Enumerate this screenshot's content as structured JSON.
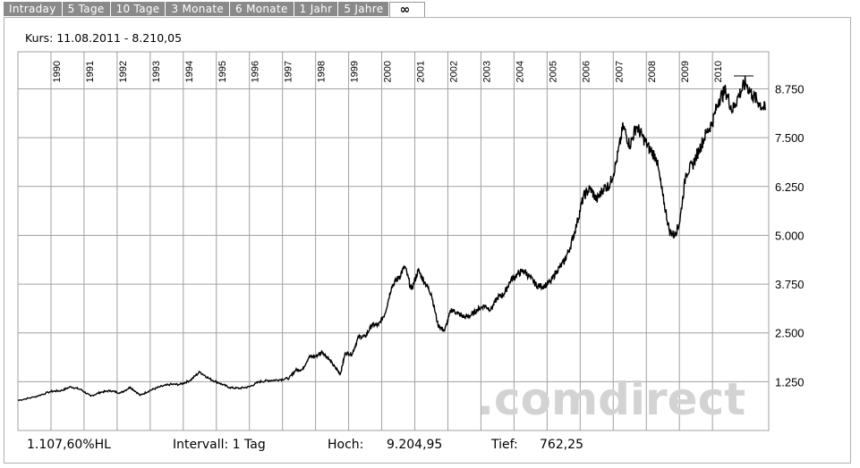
{
  "tabs": [
    "Intraday",
    "5 Tage",
    "10 Tage",
    "3 Monate",
    "6 Monate",
    "1 Jahr",
    "5 Jahre",
    "∞"
  ],
  "active_tab": "∞",
  "header": {
    "kurs_label": "Kurs: 11.08.2011 - 8.210,05"
  },
  "footer": {
    "change": "1.107,60%HL",
    "intervall": "Intervall: 1 Tag",
    "hoch_label": "Hoch:",
    "hoch_value": "9.204,95",
    "tief_label": "Tief:",
    "tief_value": "762,25"
  },
  "watermark": ".comdirect",
  "colors": {
    "line": "#000000",
    "grid": "#a0a0a0",
    "tab_bg": "#8a8a8a",
    "watermark": "#d0d0d0"
  },
  "chart_data": {
    "type": "line",
    "x_tick_labels": [
      "1990",
      "1991",
      "1992",
      "1993",
      "1994",
      "1995",
      "1996",
      "1997",
      "1998",
      "1999",
      "2000",
      "2001",
      "2002",
      "2003",
      "2004",
      "2005",
      "2006",
      "2007",
      "2008",
      "2009",
      "2010"
    ],
    "y_tick_labels": [
      "1.250",
      "2.500",
      "3.750",
      "5.000",
      "6.250",
      "7.500",
      "8.750"
    ],
    "y_ticks": [
      1250,
      2500,
      3750,
      5000,
      6250,
      7500,
      8750
    ],
    "ylim": [
      0,
      9700
    ],
    "xlim": [
      1989.0,
      2011.7
    ],
    "grid": true,
    "series": [
      {
        "x": [
          1989.0,
          1989.5,
          1990.0,
          1990.3,
          1990.6,
          1990.9,
          1991.2,
          1991.5,
          1991.8,
          1992.1,
          1992.4,
          1992.7,
          1993.0,
          1993.3,
          1993.6,
          1993.9,
          1994.2,
          1994.5,
          1994.8,
          1995.1,
          1995.4,
          1995.7,
          1996.0,
          1996.3,
          1996.6,
          1996.9,
          1997.2,
          1997.4,
          1997.6,
          1997.8,
          1998.0,
          1998.2,
          1998.4,
          1998.6,
          1998.75,
          1998.9,
          1999.1,
          1999.3,
          1999.5,
          1999.7,
          1999.9,
          2000.1,
          2000.3,
          2000.5,
          2000.7,
          2000.9,
          2001.1,
          2001.3,
          2001.5,
          2001.7,
          2001.9,
          2002.1,
          2002.3,
          2002.5,
          2002.7,
          2002.9,
          2003.1,
          2003.3,
          2003.5,
          2003.7,
          2003.9,
          2004.1,
          2004.3,
          2004.5,
          2004.7,
          2004.9,
          2005.1,
          2005.3,
          2005.5,
          2005.7,
          2005.9,
          2006.1,
          2006.3,
          2006.5,
          2006.7,
          2006.9,
          2007.1,
          2007.3,
          2007.5,
          2007.7,
          2007.9,
          2008.1,
          2008.3,
          2008.5,
          2008.7,
          2008.85,
          2009.0,
          2009.2,
          2009.4,
          2009.6,
          2009.8,
          2010.0,
          2010.2,
          2010.4,
          2010.6,
          2010.8,
          2011.0,
          2011.2,
          2011.4,
          2011.61
        ],
        "y": [
          770,
          860,
          1000,
          1020,
          1120,
          1050,
          880,
          980,
          1020,
          960,
          1110,
          900,
          1030,
          1120,
          1180,
          1180,
          1280,
          1500,
          1320,
          1210,
          1100,
          1080,
          1120,
          1250,
          1280,
          1300,
          1340,
          1550,
          1560,
          1880,
          1900,
          2020,
          1830,
          1600,
          1450,
          1990,
          1950,
          2400,
          2400,
          2700,
          2700,
          3000,
          3700,
          3900,
          4200,
          3600,
          4100,
          3800,
          3500,
          2700,
          2550,
          3100,
          3000,
          2900,
          2950,
          3100,
          3200,
          3100,
          3400,
          3500,
          3850,
          4000,
          4100,
          3900,
          3700,
          3700,
          3800,
          4100,
          4300,
          4700,
          5300,
          6000,
          6200,
          5900,
          6200,
          6300,
          6900,
          7800,
          7300,
          7800,
          7500,
          7200,
          7000,
          6000,
          5100,
          5000,
          5300,
          6600,
          6800,
          7200,
          7600,
          7900,
          8500,
          8700,
          8200,
          8600,
          8900,
          8600,
          8400,
          8210
        ]
      }
    ]
  }
}
